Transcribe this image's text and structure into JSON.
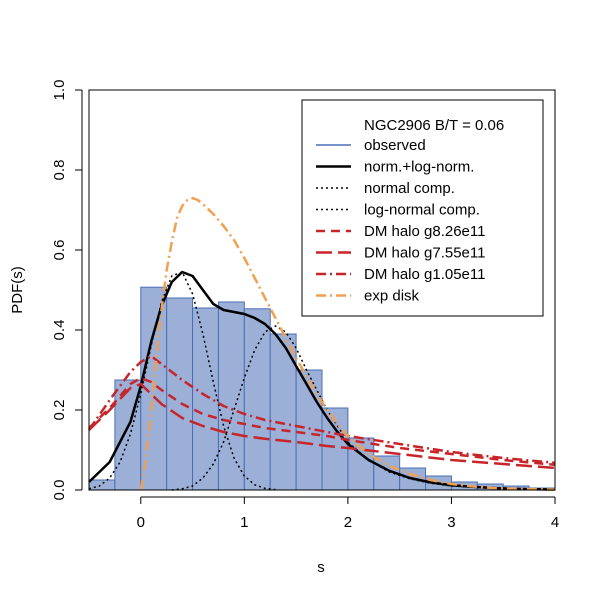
{
  "chart_data": {
    "type": "histogram+line",
    "title": "",
    "xlabel": "s",
    "ylabel": "PDF(s)",
    "xlim": [
      -0.5,
      4
    ],
    "ylim": [
      0,
      1
    ],
    "x_ticks": [
      "0",
      "1",
      "2",
      "3",
      "4"
    ],
    "y_ticks": [
      "0.0",
      "0.2",
      "0.4",
      "0.6",
      "0.8",
      "1.0"
    ],
    "legend_title": "NGC2906 B/T = 0.06",
    "legend_position": "top-right",
    "legend": [
      {
        "key": "observed",
        "label": "observed",
        "color": "#4a6fb5",
        "style": "solid"
      },
      {
        "key": "fit",
        "label": "norm.+log-norm.",
        "color": "#000000",
        "style": "solid"
      },
      {
        "key": "normal",
        "label": "normal comp.",
        "color": "#000000",
        "style": "dotted"
      },
      {
        "key": "lognormal",
        "label": "log-normal comp.",
        "color": "#000000",
        "style": "dotted"
      },
      {
        "key": "halo1",
        "label": "DM halo g8.26e11",
        "color": "#c8252b",
        "style": "dashed"
      },
      {
        "key": "halo2",
        "label": "DM halo g7.55e11",
        "color": "#c8252b",
        "style": "longdash"
      },
      {
        "key": "halo3",
        "label": "DM halo g1.05e11",
        "color": "#c8252b",
        "style": "dashdot"
      },
      {
        "key": "disk",
        "label": "exp disk",
        "color": "#f0a050",
        "style": "dashdot"
      }
    ],
    "histogram": {
      "bin_width": 0.25,
      "bins": [
        {
          "x0": -0.5,
          "value": 0.025
        },
        {
          "x0": -0.25,
          "value": 0.275
        },
        {
          "x0": 0.0,
          "value": 0.507
        },
        {
          "x0": 0.25,
          "value": 0.48
        },
        {
          "x0": 0.5,
          "value": 0.455
        },
        {
          "x0": 0.75,
          "value": 0.47
        },
        {
          "x0": 1.0,
          "value": 0.453
        },
        {
          "x0": 1.25,
          "value": 0.39
        },
        {
          "x0": 1.5,
          "value": 0.3
        },
        {
          "x0": 1.75,
          "value": 0.205
        },
        {
          "x0": 2.0,
          "value": 0.13
        },
        {
          "x0": 2.25,
          "value": 0.085
        },
        {
          "x0": 2.5,
          "value": 0.055
        },
        {
          "x0": 2.75,
          "value": 0.035
        },
        {
          "x0": 3.0,
          "value": 0.02
        },
        {
          "x0": 3.25,
          "value": 0.015
        },
        {
          "x0": 3.5,
          "value": 0.01
        },
        {
          "x0": 3.75,
          "value": 0.005
        }
      ]
    },
    "series": [
      {
        "name": "norm.+log-norm.",
        "key": "fit",
        "x": [
          -0.5,
          -0.3,
          -0.1,
          0.0,
          0.1,
          0.2,
          0.3,
          0.4,
          0.5,
          0.6,
          0.7,
          0.8,
          0.9,
          1.0,
          1.1,
          1.2,
          1.3,
          1.4,
          1.5,
          1.6,
          1.7,
          1.8,
          1.9,
          2.0,
          2.2,
          2.4,
          2.6,
          2.8,
          3.0,
          3.2,
          3.4,
          3.6,
          3.8,
          4.0
        ],
        "y": [
          0.02,
          0.07,
          0.17,
          0.26,
          0.37,
          0.46,
          0.52,
          0.545,
          0.535,
          0.5,
          0.465,
          0.45,
          0.445,
          0.44,
          0.43,
          0.415,
          0.39,
          0.355,
          0.31,
          0.265,
          0.22,
          0.18,
          0.145,
          0.115,
          0.075,
          0.048,
          0.03,
          0.019,
          0.012,
          0.008,
          0.005,
          0.003,
          0.002,
          0.001
        ]
      },
      {
        "name": "normal comp.",
        "key": "normal",
        "x": [
          -0.5,
          -0.4,
          -0.3,
          -0.2,
          -0.1,
          0.0,
          0.1,
          0.2,
          0.3,
          0.4,
          0.5,
          0.6,
          0.7,
          0.8,
          0.9,
          1.0,
          1.1,
          1.2,
          1.3
        ],
        "y": [
          0.003,
          0.01,
          0.03,
          0.07,
          0.14,
          0.24,
          0.36,
          0.47,
          0.535,
          0.545,
          0.49,
          0.39,
          0.27,
          0.16,
          0.08,
          0.035,
          0.013,
          0.004,
          0.001
        ]
      },
      {
        "name": "log-normal comp.",
        "key": "lognormal",
        "x": [
          0.3,
          0.4,
          0.5,
          0.6,
          0.7,
          0.8,
          0.9,
          1.0,
          1.1,
          1.2,
          1.3,
          1.4,
          1.5,
          1.6,
          1.7,
          1.8,
          2.0,
          2.2,
          2.4,
          2.6,
          2.8,
          3.0,
          3.2,
          3.5,
          3.8,
          4.0
        ],
        "y": [
          0.0,
          0.003,
          0.01,
          0.03,
          0.065,
          0.12,
          0.2,
          0.28,
          0.35,
          0.395,
          0.41,
          0.395,
          0.355,
          0.3,
          0.25,
          0.2,
          0.12,
          0.075,
          0.045,
          0.028,
          0.017,
          0.01,
          0.007,
          0.004,
          0.002,
          0.001
        ]
      },
      {
        "name": "DM halo g8.26e11",
        "key": "halo1",
        "x": [
          -0.5,
          -0.3,
          -0.1,
          0.0,
          0.05,
          0.1,
          0.2,
          0.4,
          0.6,
          0.8,
          1.0,
          1.2,
          1.5,
          1.8,
          2.0,
          2.5,
          3.0,
          3.5,
          4.0
        ],
        "y": [
          0.155,
          0.205,
          0.265,
          0.28,
          0.275,
          0.27,
          0.25,
          0.215,
          0.19,
          0.175,
          0.165,
          0.155,
          0.145,
          0.135,
          0.125,
          0.105,
          0.09,
          0.075,
          0.063
        ]
      },
      {
        "name": "DM halo g7.55e11",
        "key": "halo2",
        "x": [
          -0.5,
          -0.3,
          -0.1,
          0.0,
          0.1,
          0.2,
          0.4,
          0.6,
          0.8,
          1.0,
          1.2,
          1.5,
          1.8,
          2.0,
          2.5,
          3.0,
          3.5,
          4.0
        ],
        "y": [
          0.15,
          0.2,
          0.255,
          0.265,
          0.24,
          0.215,
          0.18,
          0.16,
          0.145,
          0.135,
          0.128,
          0.12,
          0.11,
          0.105,
          0.09,
          0.075,
          0.065,
          0.055
        ]
      },
      {
        "name": "DM halo g1.05e11",
        "key": "halo3",
        "x": [
          -0.5,
          -0.3,
          -0.1,
          0.0,
          0.1,
          0.2,
          0.4,
          0.6,
          0.8,
          1.0,
          1.2,
          1.5,
          1.8,
          2.0,
          2.5,
          3.0,
          3.5,
          4.0
        ],
        "y": [
          0.15,
          0.225,
          0.295,
          0.32,
          0.335,
          0.315,
          0.275,
          0.24,
          0.21,
          0.19,
          0.175,
          0.16,
          0.145,
          0.135,
          0.115,
          0.095,
          0.08,
          0.068
        ]
      },
      {
        "name": "exp disk",
        "key": "disk",
        "x": [
          0.0,
          0.05,
          0.1,
          0.15,
          0.2,
          0.25,
          0.3,
          0.35,
          0.4,
          0.45,
          0.5,
          0.55,
          0.6,
          0.7,
          0.8,
          0.9,
          1.0,
          1.1,
          1.2,
          1.3,
          1.4,
          1.5,
          1.6,
          1.7,
          1.8,
          1.9,
          2.0,
          2.2,
          2.4,
          2.6,
          2.8,
          3.0,
          3.2,
          3.4,
          3.6,
          3.8,
          4.0
        ],
        "y": [
          0.0,
          0.08,
          0.2,
          0.33,
          0.45,
          0.55,
          0.62,
          0.68,
          0.71,
          0.725,
          0.73,
          0.725,
          0.715,
          0.69,
          0.66,
          0.625,
          0.58,
          0.53,
          0.48,
          0.43,
          0.38,
          0.33,
          0.285,
          0.24,
          0.2,
          0.165,
          0.135,
          0.09,
          0.06,
          0.04,
          0.025,
          0.015,
          0.009,
          0.005,
          0.003,
          0.002,
          0.001
        ]
      }
    ]
  }
}
